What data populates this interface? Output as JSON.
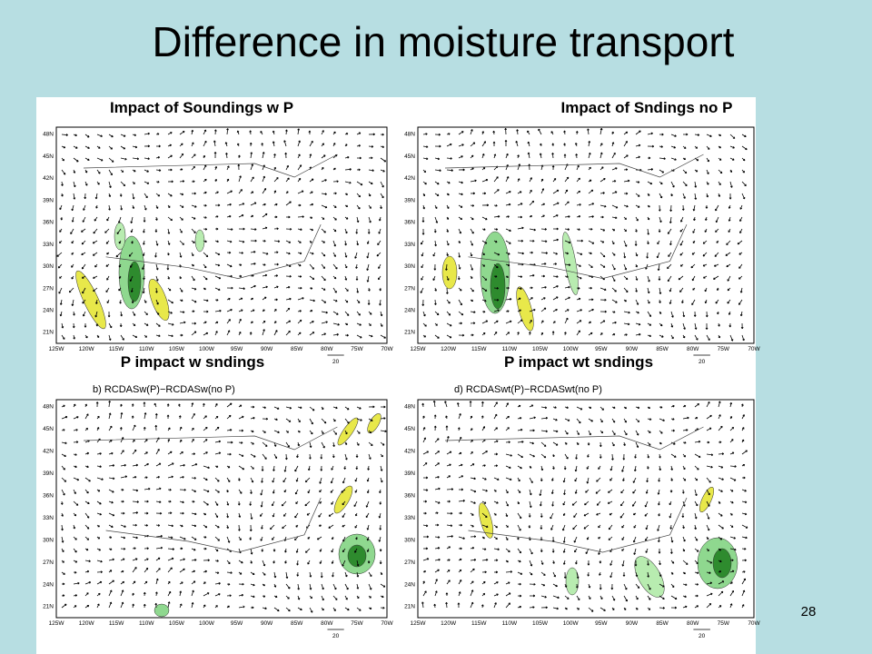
{
  "title": "Difference in moisture transport",
  "panels": [
    {
      "label": "Impact of Soundings w P"
    },
    {
      "label": "Impact of Sndings no P"
    },
    {
      "label": "P impact w sndings",
      "map_title": "b) RCDASw(P)−RCDASw(no P)"
    },
    {
      "label": "P impact wt sndings",
      "map_title": "d) RCDASwt(P)−RCDASwt(no P)"
    }
  ],
  "lat_labels": [
    "48N",
    "45N",
    "42N",
    "39N",
    "36N",
    "33N",
    "30N",
    "27N",
    "24N",
    "21N"
  ],
  "lon_labels": [
    "125W",
    "120W",
    "115W",
    "110W",
    "105W",
    "100W",
    "95W",
    "90W",
    "85W",
    "80W",
    "75W",
    "70W"
  ],
  "reference_vector": "20",
  "slide_number": "28"
}
